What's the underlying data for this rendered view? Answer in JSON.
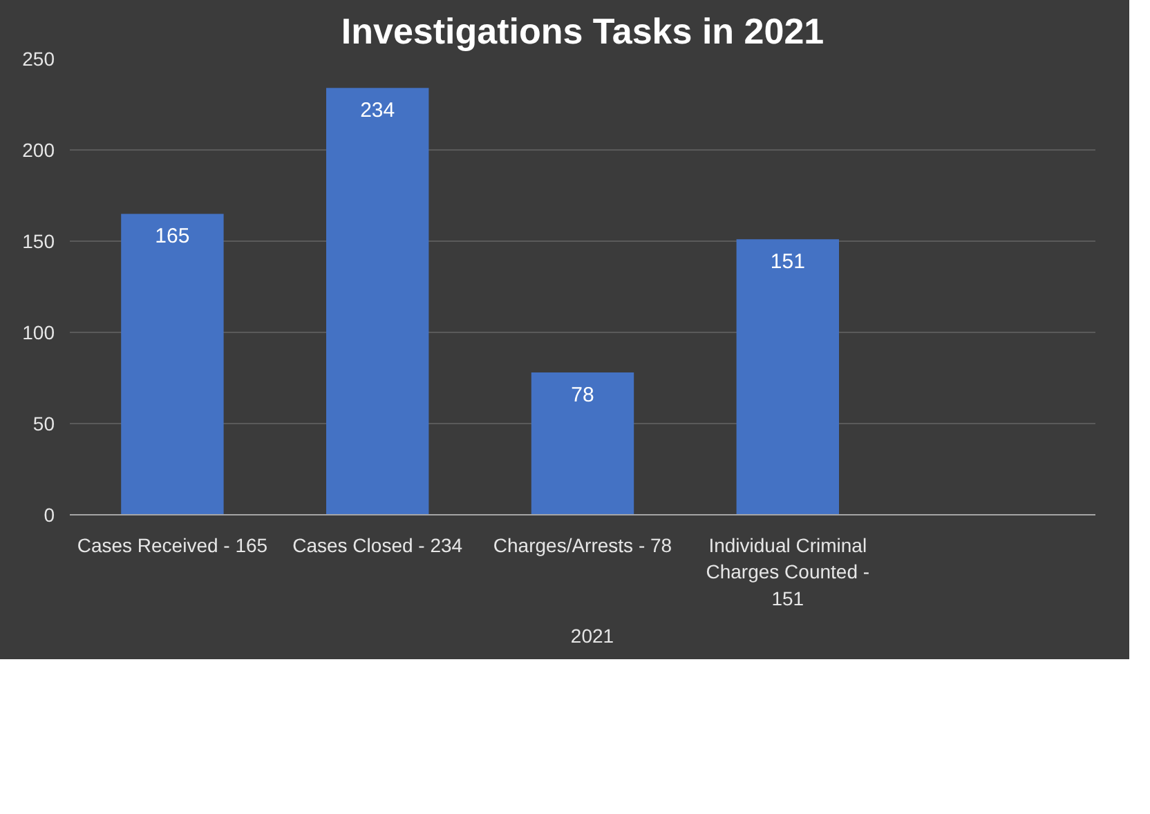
{
  "chart_data": {
    "type": "bar",
    "title": "Investigations Tasks in 2021",
    "categories": [
      "Cases Received - 165",
      "Cases Closed - 234",
      "Charges/Arrests - 78",
      "Individual Criminal Charges Counted - 151",
      null
    ],
    "series": [
      {
        "name": "2021",
        "color": "#4472c4",
        "values": [
          165,
          234,
          78,
          151,
          null
        ]
      }
    ],
    "ylim": [
      0,
      250
    ],
    "yticks": [
      0,
      50,
      100,
      150,
      200,
      250
    ],
    "grid": "y",
    "legend": "bottom",
    "data_labels": true
  }
}
